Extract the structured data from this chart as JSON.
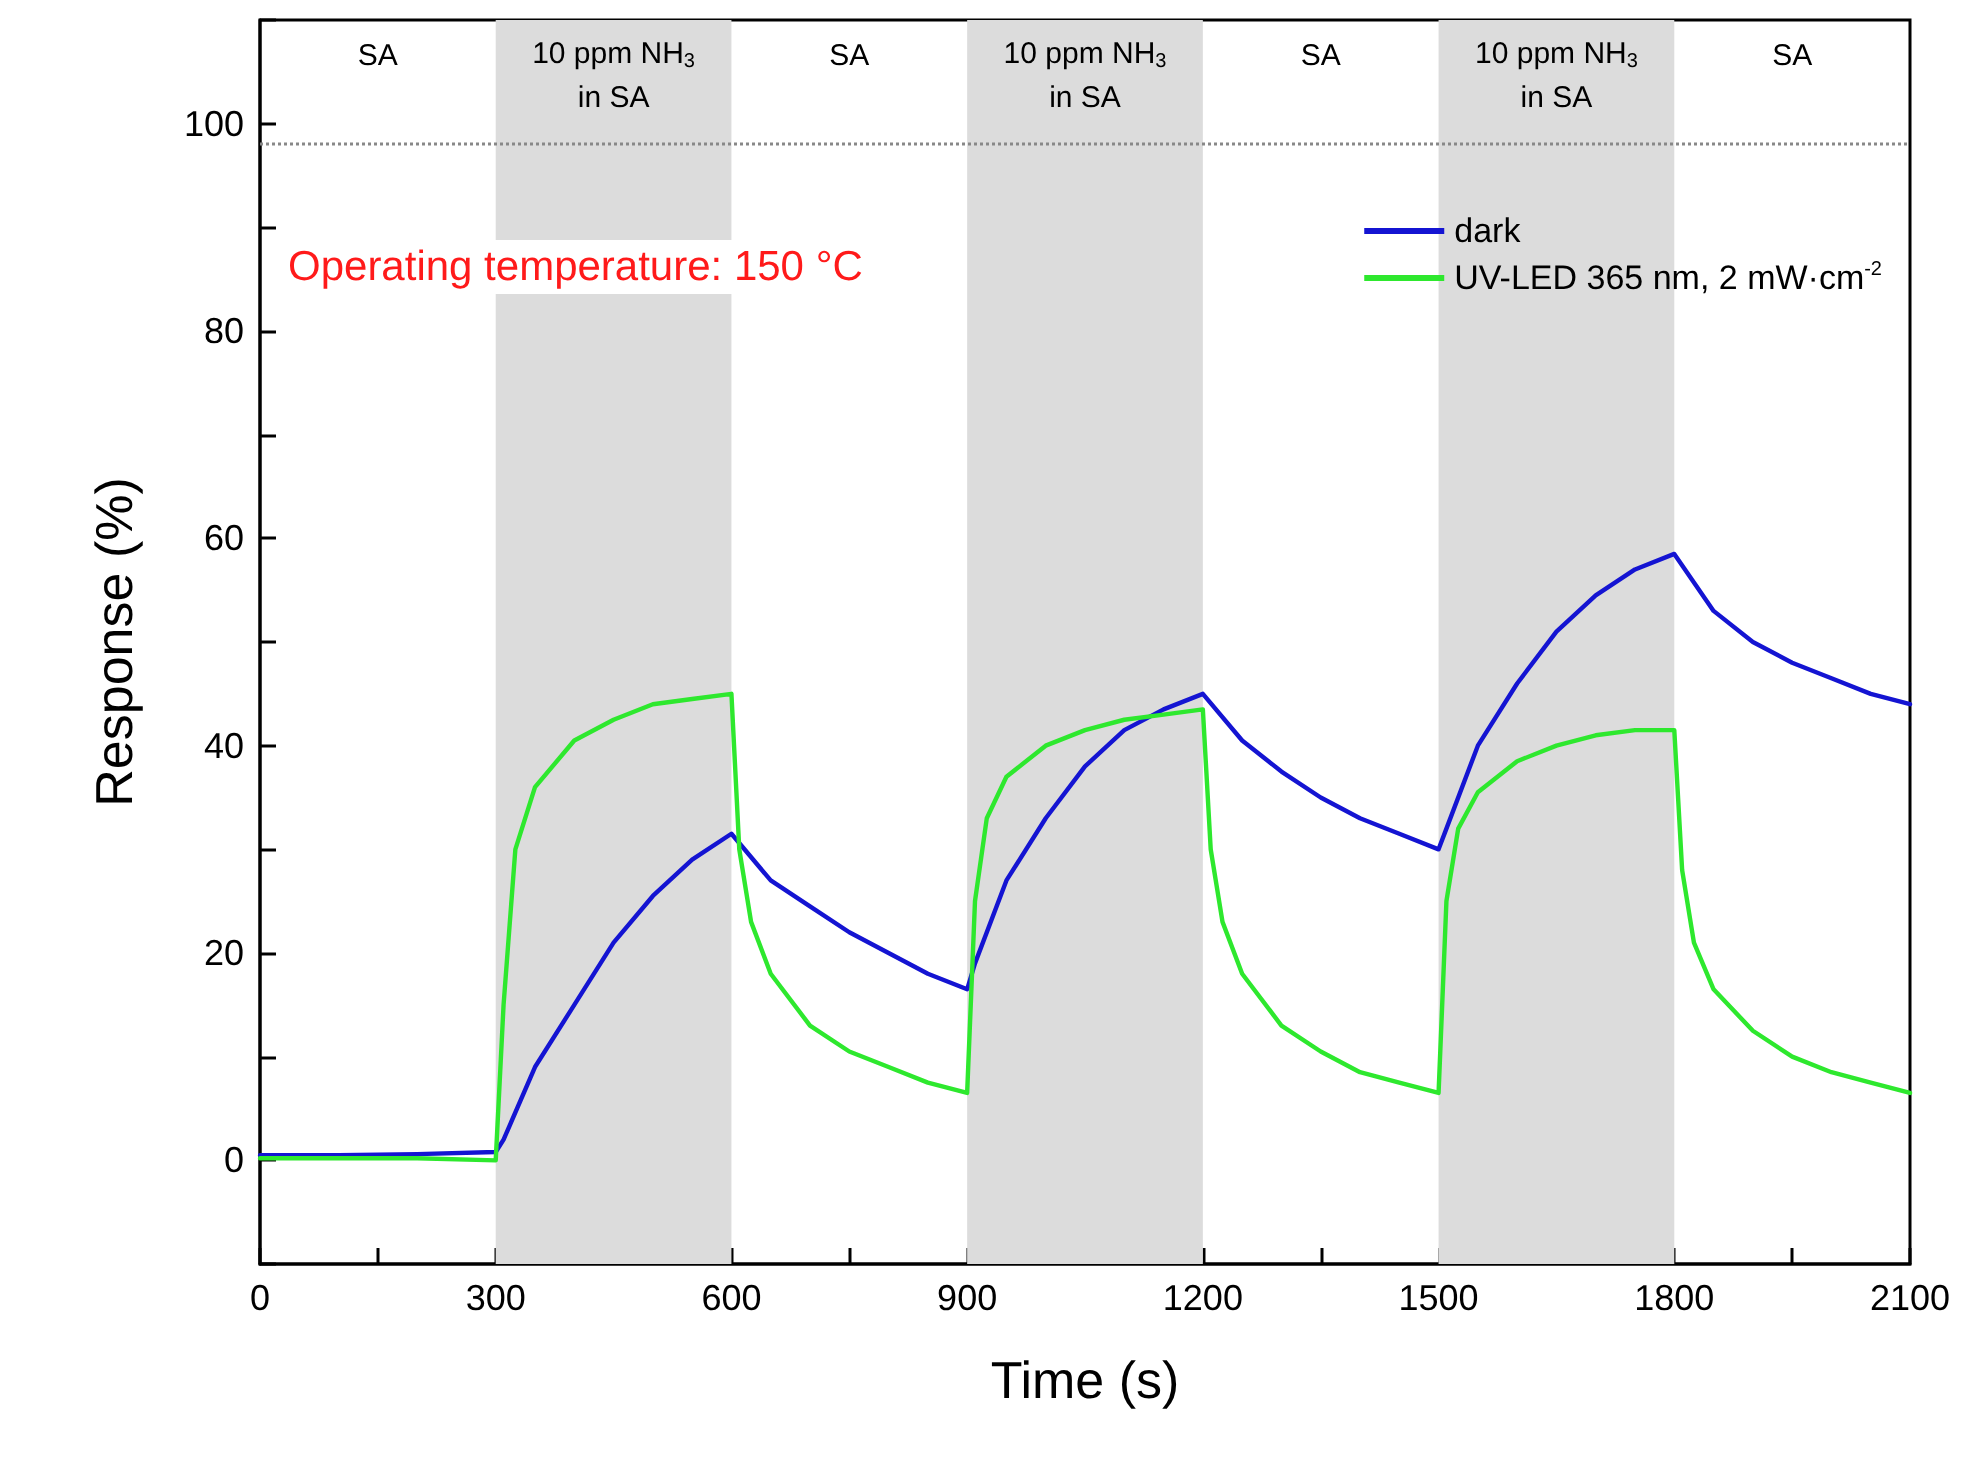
{
  "chart_data": {
    "type": "line",
    "xlabel": "Time (s)",
    "ylabel": "Response (%)",
    "xlim": [
      0,
      2100
    ],
    "xticks": [
      0,
      {
        "value": 150,
        "label": null
      },
      300,
      {
        "value": 450,
        "label": null
      },
      600,
      {
        "value": 750,
        "label": null
      },
      900,
      {
        "value": 1050,
        "label": null
      },
      1200,
      {
        "value": 1350,
        "label": null
      },
      1500,
      {
        "value": 1650,
        "label": null
      },
      1800,
      {
        "value": 1950,
        "label": null
      },
      2100
    ],
    "ylim": [
      -10,
      110
    ],
    "yticks": [
      {
        "value": -10,
        "label": null
      },
      0,
      {
        "value": 10,
        "label": null
      },
      20,
      {
        "value": 30,
        "label": null
      },
      40,
      {
        "value": 50,
        "label": null
      },
      60,
      {
        "value": 70,
        "label": null
      },
      80,
      {
        "value": 90,
        "label": null
      },
      100,
      {
        "value": 110,
        "label": null
      }
    ],
    "legend": "top right",
    "marker": "none",
    "line_style": "solid",
    "grid": false,
    "series": [
      {
        "name": "dark",
        "color": "#1414d2",
        "x": [
          0,
          100,
          200,
          300,
          310,
          350,
          400,
          450,
          500,
          550,
          600,
          650,
          700,
          750,
          800,
          850,
          900,
          910,
          950,
          1000,
          1050,
          1100,
          1150,
          1200,
          1250,
          1300,
          1350,
          1400,
          1450,
          1500,
          1510,
          1550,
          1600,
          1650,
          1700,
          1750,
          1800,
          1850,
          1900,
          1950,
          2000,
          2050,
          2100
        ],
        "values": [
          0.5,
          0.5,
          0.6,
          0.8,
          2,
          9,
          15,
          21,
          25.5,
          29,
          31.5,
          27,
          24.5,
          22,
          20,
          18,
          16.5,
          19,
          27,
          33,
          38,
          41.5,
          43.5,
          45,
          40.5,
          37.5,
          35,
          33,
          31.5,
          30,
          32,
          40,
          46,
          51,
          54.5,
          57,
          58.5,
          53,
          50,
          48,
          46.5,
          45,
          44
        ]
      },
      {
        "name": "UV-LED 365 nm, 2 mW·cm$^{-2}$",
        "color": "#2ee82e",
        "x": [
          0,
          100,
          200,
          300,
          310,
          325,
          350,
          400,
          450,
          500,
          550,
          600,
          610,
          625,
          650,
          700,
          750,
          800,
          850,
          900,
          910,
          925,
          950,
          1000,
          1050,
          1100,
          1150,
          1200,
          1210,
          1225,
          1250,
          1300,
          1350,
          1400,
          1450,
          1500,
          1510,
          1525,
          1550,
          1600,
          1650,
          1700,
          1750,
          1800,
          1810,
          1825,
          1850,
          1900,
          1950,
          2000,
          2050,
          2100
        ],
        "values": [
          0.2,
          0.2,
          0.2,
          0,
          15,
          30,
          36,
          40.5,
          42.5,
          44,
          44.5,
          45,
          30,
          23,
          18,
          13,
          10.5,
          9,
          7.5,
          6.5,
          25,
          33,
          37,
          40,
          41.5,
          42.5,
          43,
          43.5,
          30,
          23,
          18,
          13,
          10.5,
          8.5,
          7.5,
          6.5,
          25,
          32,
          35.5,
          38.5,
          40,
          41,
          41.5,
          41.5,
          28,
          21,
          16.5,
          12.5,
          10,
          8.5,
          7.5,
          6.5
        ]
      }
    ],
    "ref_lines": [
      {
        "axis": "y",
        "value": 98,
        "color": "#888888",
        "line_style": "dotted"
      }
    ],
    "bands": [
      {
        "axis": "x",
        "from": 300,
        "to": 600,
        "label": "10 ppm NH$_{3}$\nin SA",
        "color": "#dcdcdc"
      },
      {
        "axis": "x",
        "from": 900,
        "to": 1200,
        "label": "10 ppm NH$_{3}$\nin SA",
        "color": "#dcdcdc"
      },
      {
        "axis": "x",
        "from": 1500,
        "to": 1800,
        "label": "10 ppm NH$_{3}$\nin SA",
        "color": "#dcdcdc"
      }
    ],
    "annotations": [
      "SA",
      "SA",
      "SA",
      "SA",
      "Operating temperature: 150 °C"
    ]
  }
}
